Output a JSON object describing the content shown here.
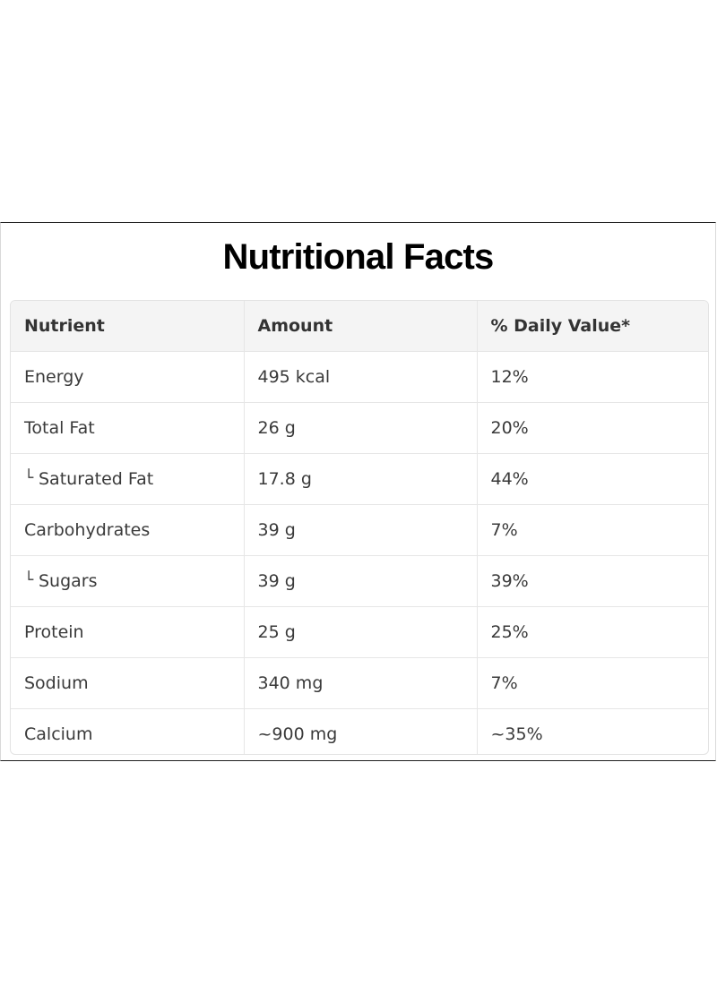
{
  "title": "Nutritional Facts",
  "table": {
    "headers": [
      "Nutrient",
      "Amount",
      "% Daily Value*"
    ],
    "rows": [
      {
        "nutrient": "Energy",
        "amount": "495 kcal",
        "dv": "12%",
        "sub": false
      },
      {
        "nutrient": "Total Fat",
        "amount": "26 g",
        "dv": "20%",
        "sub": false
      },
      {
        "nutrient": "Saturated Fat",
        "amount": "17.8 g",
        "dv": "44%",
        "sub": true
      },
      {
        "nutrient": "Carbohydrates",
        "amount": "39 g",
        "dv": "7%",
        "sub": false
      },
      {
        "nutrient": "Sugars",
        "amount": "39 g",
        "dv": "39%",
        "sub": true
      },
      {
        "nutrient": "Protein",
        "amount": "25 g",
        "dv": "25%",
        "sub": false
      },
      {
        "nutrient": "Sodium",
        "amount": "340 mg",
        "dv": "7%",
        "sub": false
      },
      {
        "nutrient": "Calcium",
        "amount": "~900 mg",
        "dv": "~35%",
        "sub": false
      }
    ],
    "sub_marker": "└"
  }
}
